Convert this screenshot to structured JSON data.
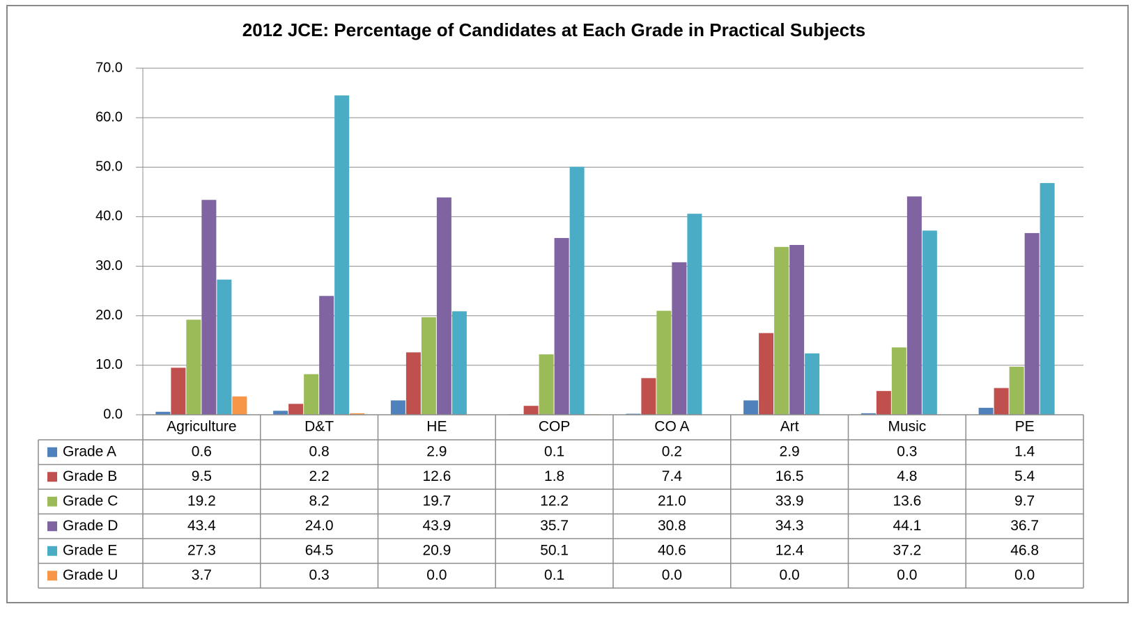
{
  "chart_data": {
    "type": "bar",
    "title": "2012 JCE: Percentage of Candidates at Each Grade in Practical Subjects",
    "categories": [
      "Agriculture",
      "D&T",
      "HE",
      "COP",
      "CO A",
      "Art",
      "Music",
      "PE"
    ],
    "series": [
      {
        "name": "Grade A",
        "color": "#4f81bd",
        "values": [
          0.6,
          0.8,
          2.9,
          0.1,
          0.2,
          2.9,
          0.3,
          1.4
        ],
        "value_labels": [
          "0.6",
          "0.8",
          "2.9",
          "0.1",
          "0.2",
          "2.9",
          "0.3",
          "1.4"
        ]
      },
      {
        "name": "Grade B",
        "color": "#c0504d",
        "values": [
          9.5,
          2.2,
          12.6,
          1.8,
          7.4,
          16.5,
          4.8,
          5.4
        ],
        "value_labels": [
          "9.5",
          "2.2",
          "12.6",
          "1.8",
          "7.4",
          "16.5",
          "4.8",
          "5.4"
        ]
      },
      {
        "name": "Grade C",
        "color": "#9bbb59",
        "values": [
          19.2,
          8.2,
          19.7,
          12.2,
          21.0,
          33.9,
          13.6,
          9.7
        ],
        "value_labels": [
          "19.2",
          "8.2",
          "19.7",
          "12.2",
          "21.0",
          "33.9",
          "13.6",
          "9.7"
        ]
      },
      {
        "name": "Grade D",
        "color": "#8064a2",
        "values": [
          43.4,
          24.0,
          43.9,
          35.7,
          30.8,
          34.3,
          44.1,
          36.7
        ],
        "value_labels": [
          "43.4",
          "24.0",
          "43.9",
          "35.7",
          "30.8",
          "34.3",
          "44.1",
          "36.7"
        ]
      },
      {
        "name": "Grade E",
        "color": "#4bacc6",
        "values": [
          27.3,
          64.5,
          20.9,
          50.1,
          40.6,
          12.4,
          37.2,
          46.8
        ],
        "value_labels": [
          "27.3",
          "64.5",
          "20.9",
          "50.1",
          "40.6",
          "12.4",
          "37.2",
          "46.8"
        ]
      },
      {
        "name": "Grade U",
        "color": "#f79646",
        "values": [
          3.7,
          0.3,
          0.0,
          0.1,
          0.0,
          0.0,
          0.0,
          0.0
        ],
        "value_labels": [
          "3.7",
          "0.3",
          "0.0",
          "0.1",
          "0.0",
          "0.0",
          "0.0",
          "0.0"
        ]
      }
    ],
    "ylim": [
      0,
      70
    ],
    "yticks": [
      {
        "value": 0,
        "label": "0.0"
      },
      {
        "value": 10,
        "label": "10.0"
      },
      {
        "value": 20,
        "label": "20.0"
      },
      {
        "value": 30,
        "label": "30.0"
      },
      {
        "value": 40,
        "label": "40.0"
      },
      {
        "value": 50,
        "label": "50.0"
      },
      {
        "value": 60,
        "label": "60.0"
      },
      {
        "value": 70,
        "label": "70.0"
      }
    ],
    "grid": true
  }
}
